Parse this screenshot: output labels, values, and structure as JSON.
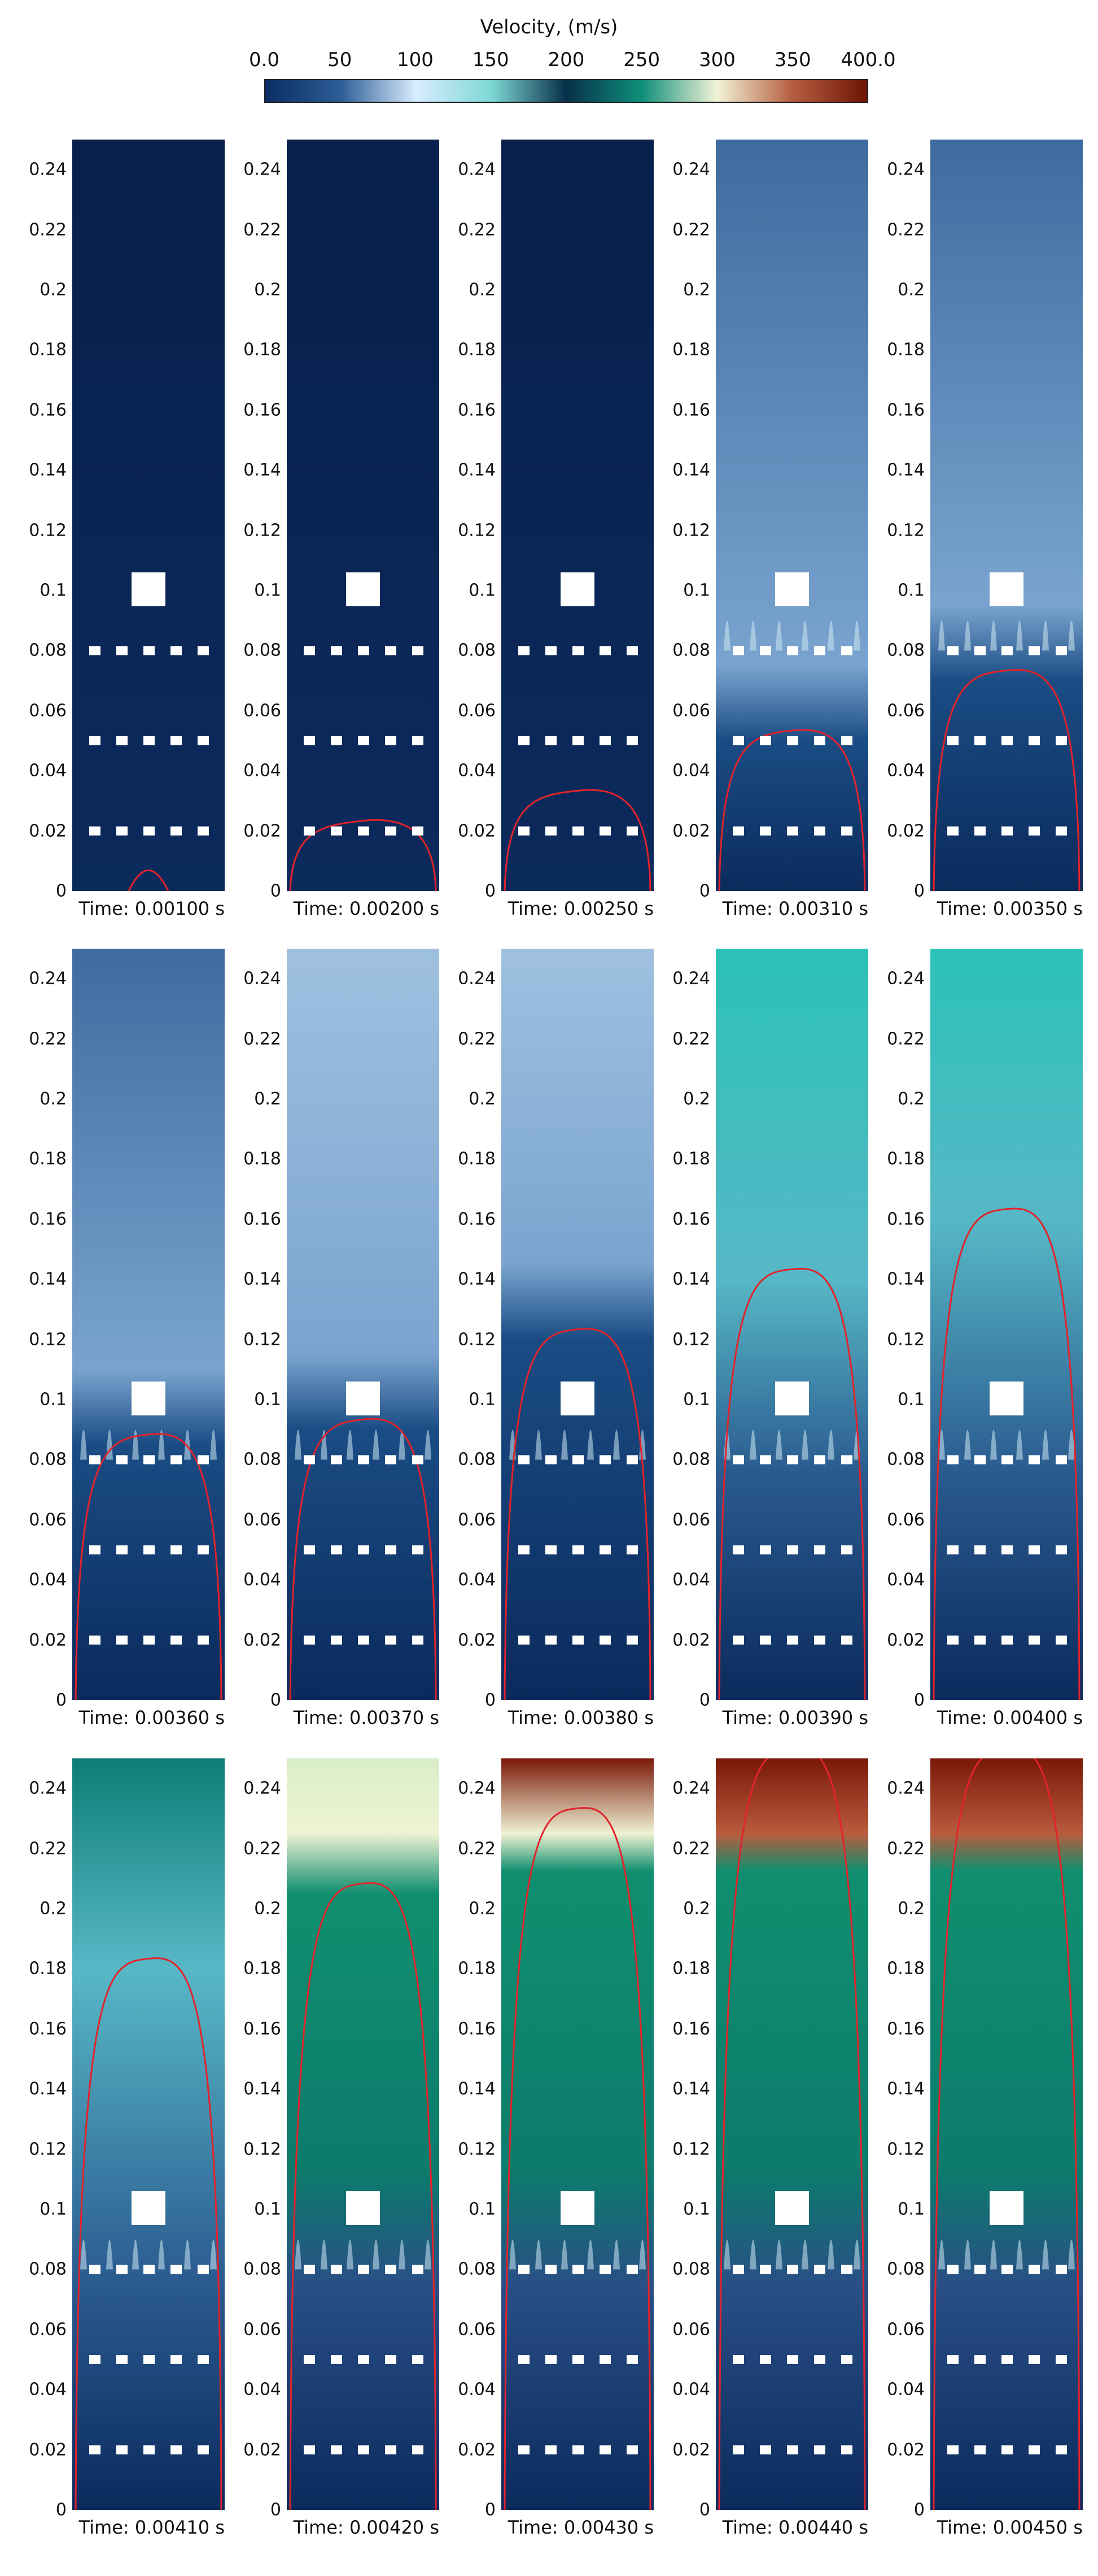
{
  "colorbar": {
    "title": "Velocity, (m/s)",
    "ticks": [
      "0.0",
      "50",
      "100",
      "150",
      "200",
      "250",
      "300",
      "350",
      "400.0"
    ],
    "colors": [
      "#0a2e63",
      "#2d5d96",
      "#d8ecff",
      "#7fd8d5",
      "#08304a",
      "#0e8f7a",
      "#f2f3d6",
      "#b75f42",
      "#6d1404"
    ]
  },
  "y_ticks": [
    "0",
    "0.02",
    "0.04",
    "0.06",
    "0.08",
    "0.1",
    "0.12",
    "0.14",
    "0.16",
    "0.18",
    "0.2",
    "0.22",
    "0.24"
  ],
  "panels": [
    {
      "time": "Time: 0.00100 s",
      "front": 0.01
    },
    {
      "time": "Time: 0.00200 s",
      "front": 0.02
    },
    {
      "time": "Time: 0.00250 s",
      "front": 0.03
    },
    {
      "time": "Time: 0.00310 s",
      "front": 0.05
    },
    {
      "time": "Time: 0.00350 s",
      "front": 0.07
    },
    {
      "time": "Time: 0.00360 s",
      "front": 0.085
    },
    {
      "time": "Time: 0.00370 s",
      "front": 0.09
    },
    {
      "time": "Time: 0.00380 s",
      "front": 0.12
    },
    {
      "time": "Time: 0.00390 s",
      "front": 0.14
    },
    {
      "time": "Time: 0.00400 s",
      "front": 0.16
    },
    {
      "time": "Time: 0.00410 s",
      "front": 0.18
    },
    {
      "time": "Time: 0.00420 s",
      "front": 0.205
    },
    {
      "time": "Time: 0.00430 s",
      "front": 0.23
    },
    {
      "time": "Time: 0.00440 s",
      "front": 0.25
    },
    {
      "time": "Time: 0.00450 s",
      "front": 0.25
    }
  ]
}
